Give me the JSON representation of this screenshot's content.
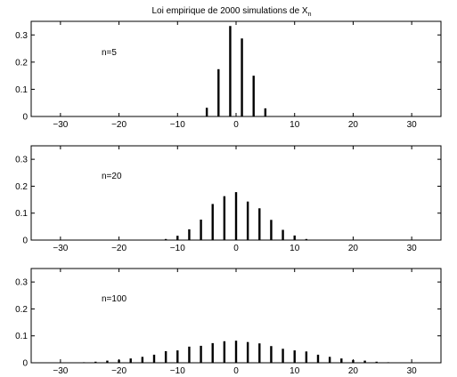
{
  "chart_data": [
    {
      "type": "bar",
      "title_main": "Loi empirique de 2000 simulations de X",
      "title_subscript": "n",
      "annotation": "n=5",
      "xlim": [
        -35,
        35
      ],
      "ylim": [
        0,
        0.35
      ],
      "xticks": [
        -30,
        -20,
        -10,
        0,
        10,
        20,
        30
      ],
      "yticks": [
        0,
        0.1,
        0.2,
        0.3
      ],
      "ytick_labels": [
        "0",
        "0.1",
        "0.2",
        "0.3"
      ],
      "x": [
        -5,
        -3,
        -1,
        1,
        3,
        5
      ],
      "values": [
        0.032,
        0.174,
        0.333,
        0.287,
        0.15,
        0.03
      ]
    },
    {
      "type": "bar",
      "annotation": "n=20",
      "xlim": [
        -35,
        35
      ],
      "ylim": [
        0,
        0.35
      ],
      "xticks": [
        -30,
        -20,
        -10,
        0,
        10,
        20,
        30
      ],
      "yticks": [
        0,
        0.1,
        0.2,
        0.3
      ],
      "ytick_labels": [
        "0",
        "0.1",
        "0.2",
        "0.3"
      ],
      "x": [
        -14,
        -12,
        -10,
        -8,
        -6,
        -4,
        -2,
        0,
        2,
        4,
        6,
        8,
        10,
        12,
        14
      ],
      "values": [
        0.001,
        0.004,
        0.016,
        0.04,
        0.076,
        0.134,
        0.163,
        0.178,
        0.143,
        0.118,
        0.075,
        0.038,
        0.017,
        0.004,
        0.001
      ]
    },
    {
      "type": "bar",
      "annotation": "n=100",
      "xlim": [
        -35,
        35
      ],
      "ylim": [
        0,
        0.35
      ],
      "xticks": [
        -30,
        -20,
        -10,
        0,
        10,
        20,
        30
      ],
      "yticks": [
        0,
        0.1,
        0.2,
        0.3
      ],
      "ytick_labels": [
        "0",
        "0.1",
        "0.2",
        "0.3"
      ],
      "x": [
        -30,
        -28,
        -26,
        -24,
        -22,
        -20,
        -18,
        -16,
        -14,
        -12,
        -10,
        -8,
        -6,
        -4,
        -2,
        0,
        2,
        4,
        6,
        8,
        10,
        12,
        14,
        16,
        18,
        20,
        22,
        24,
        26,
        28,
        30
      ],
      "values": [
        0.001,
        0.001,
        0.002,
        0.004,
        0.008,
        0.011,
        0.016,
        0.022,
        0.03,
        0.043,
        0.046,
        0.06,
        0.063,
        0.073,
        0.08,
        0.082,
        0.077,
        0.072,
        0.062,
        0.052,
        0.046,
        0.042,
        0.03,
        0.022,
        0.016,
        0.01,
        0.008,
        0.004,
        0.002,
        0.001,
        0.001
      ]
    }
  ]
}
